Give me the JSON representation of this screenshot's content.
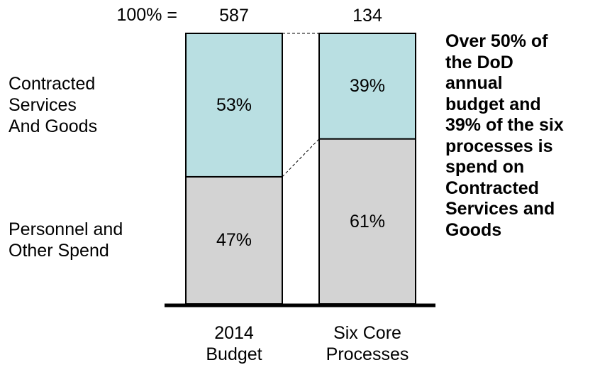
{
  "chart_data": {
    "type": "stacked_bar_100",
    "categories": [
      "2014\nBudget",
      "Six Core\nProcesses"
    ],
    "total_label": "100% =",
    "totals": [
      587,
      134
    ],
    "series": [
      {
        "name": "Personnel and\nOther Spend",
        "color": "#d3d3d3",
        "values": [
          47,
          61
        ],
        "value_labels": [
          "47%",
          "61%"
        ]
      },
      {
        "name": "Contracted\nServices\nAnd Goods",
        "color": "#b9dfe2",
        "values": [
          53,
          39
        ],
        "value_labels": [
          "53%",
          "39%"
        ]
      }
    ],
    "ylim": [
      0,
      100
    ],
    "annotation": "Over 50% of\nthe DoD\nannual\nbudget and\n39% of the six\nprocesses is\nspend on\nContracted\nServices and\nGoods"
  }
}
